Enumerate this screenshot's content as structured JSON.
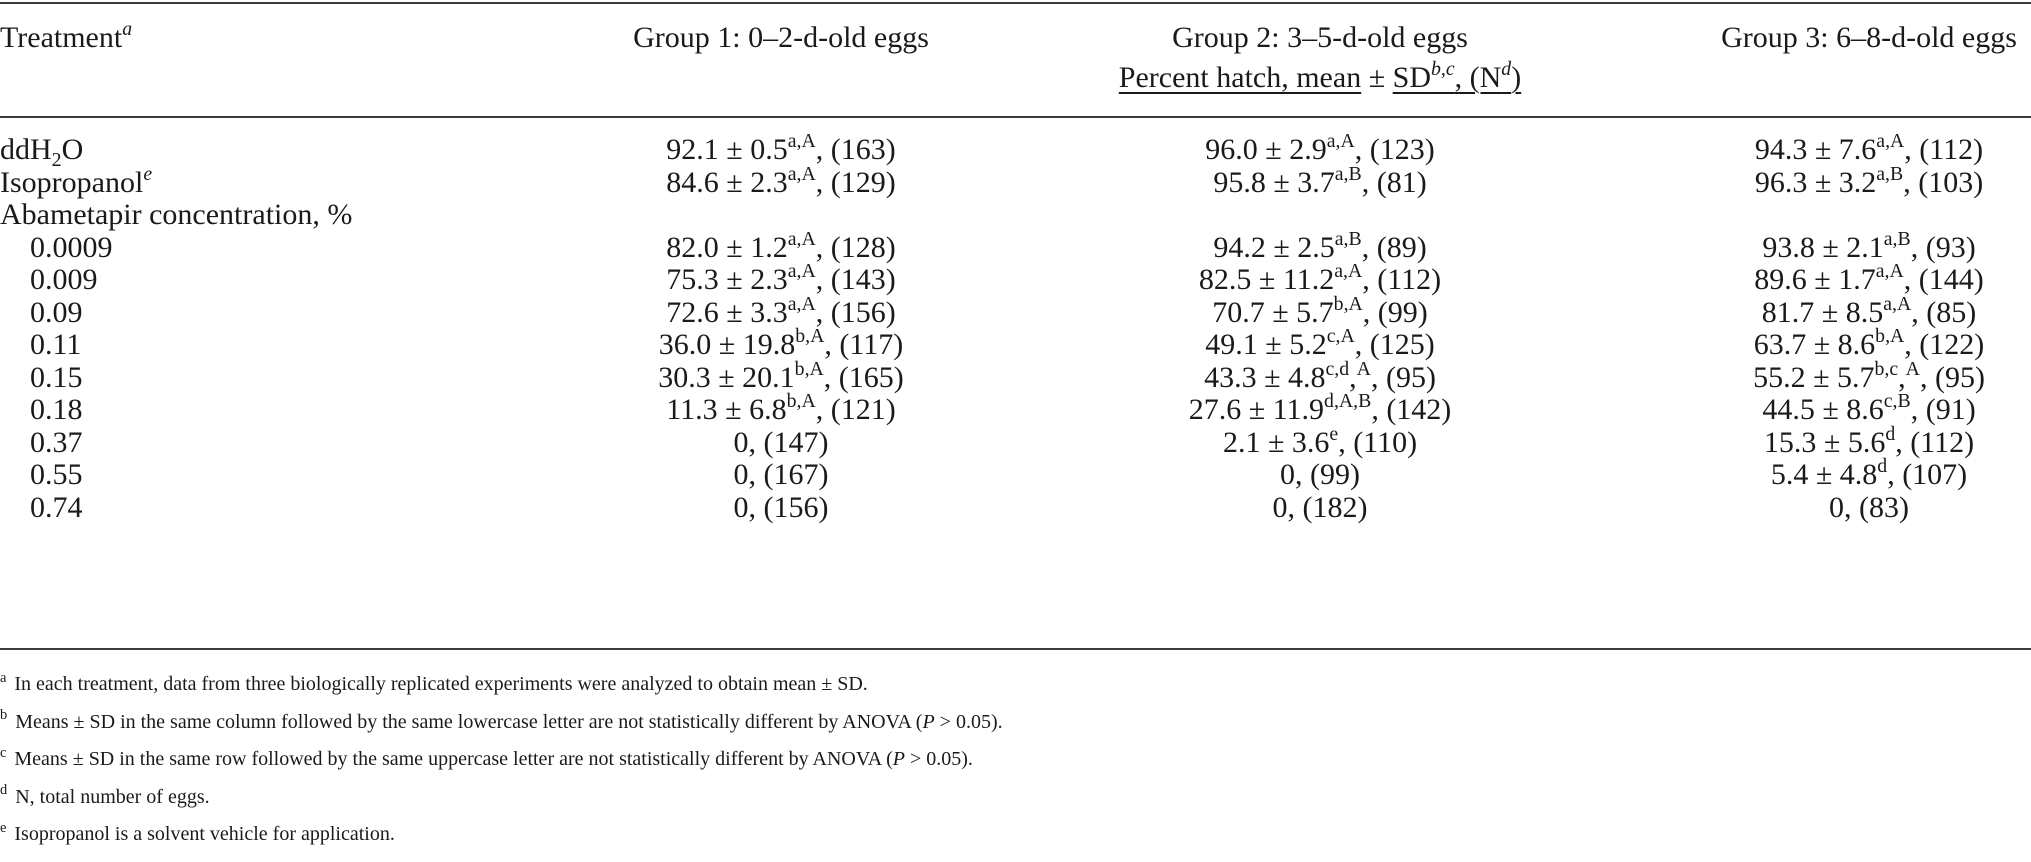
{
  "header": {
    "col_treatment": "Treatment",
    "col_treatment_sup": "a",
    "group1": "Group 1: 0–2-d-old eggs",
    "group2": "Group 2: 3–5-d-old eggs",
    "group3": "Group 3: 6–8-d-old eggs",
    "subheader": {
      "part1": "Percent hatch, mean",
      "pm": " ± ",
      "part2": "SD",
      "sup_bc": "b,c",
      "part3": ", (N",
      "sup_d": "d",
      "part4": ")"
    }
  },
  "rows": [
    {
      "label_main": "ddH",
      "label_sub": "2",
      "label_tail": "O",
      "g1": {
        "v": "92.1 ± 0.5",
        "s": "a,A",
        "n": ", (163)"
      },
      "g2": {
        "v": "96.0 ± 2.9",
        "s": "a,A",
        "n": ", (123)"
      },
      "g3": {
        "v": "94.3 ± 7.6",
        "s": "a,A",
        "n": ", (112)"
      }
    },
    {
      "label_main": "Isopropanol",
      "label_sup": "e",
      "g1": {
        "v": "84.6 ± 2.3",
        "s": "a,A",
        "n": ", (129)"
      },
      "g2": {
        "v": "95.8 ± 3.7",
        "s": "a,B",
        "n": ", (81)"
      },
      "g3": {
        "v": "96.3 ± 3.2",
        "s": "a,B",
        "n": ", (103)"
      }
    },
    {
      "label_main": "Abametapir concentration, %"
    },
    {
      "label_main": "0.0009",
      "indent": true,
      "g1": {
        "v": "82.0 ± 1.2",
        "s": "a,A",
        "n": ", (128)"
      },
      "g2": {
        "v": "94.2 ± 2.5",
        "s": "a,B",
        "n": ", (89)"
      },
      "g3": {
        "v": "93.8 ± 2.1",
        "s": "a,B",
        "n": ", (93)"
      }
    },
    {
      "label_main": "0.009",
      "indent": true,
      "g1": {
        "v": "75.3 ± 2.3",
        "s": "a,A",
        "n": ", (143)"
      },
      "g2": {
        "v": "82.5 ± 11.2",
        "s": "a,A",
        "n": ", (112)"
      },
      "g3": {
        "v": "89.6 ± 1.7",
        "s": "a,A",
        "n": ", (144)"
      }
    },
    {
      "label_main": "0.09",
      "indent": true,
      "g1": {
        "v": "72.6 ± 3.3",
        "s": "a,A",
        "n": ", (156)"
      },
      "g2": {
        "v": "70.7 ± 5.7",
        "s": "b,A",
        "n": ", (99)"
      },
      "g3": {
        "v": "81.7 ± 8.5",
        "s": "a,A",
        "n": ", (85)"
      }
    },
    {
      "label_main": "0.11",
      "indent": true,
      "g1": {
        "v": "36.0 ± 19.8",
        "s": "b,A",
        "n": ", (117)"
      },
      "g2": {
        "v": "49.1 ± 5.2",
        "s": "c,A",
        "n": ", (125)"
      },
      "g3": {
        "v": "63.7 ± 8.6",
        "s": "b,A",
        "n": ", (122)"
      }
    },
    {
      "label_main": "0.15",
      "indent": true,
      "g1": {
        "v": "30.3 ± 20.1",
        "s": "b,A",
        "n": ", (165)"
      },
      "g2": {
        "v": "43.3 ± 4.8",
        "s": "c,d",
        "s2": ",",
        "s3": "A",
        "n": ", (95)"
      },
      "g3": {
        "v": "55.2 ± 5.7",
        "s": "b,c",
        "s2": ",",
        "s3": "A",
        "n": ", (95)"
      }
    },
    {
      "label_main": "0.18",
      "indent": true,
      "g1": {
        "v": "11.3 ± 6.8",
        "s": "b,A",
        "n": ", (121)"
      },
      "g2": {
        "v": "27.6 ± 11.9",
        "s": "d,A,B",
        "n": ", (142)"
      },
      "g3": {
        "v": "44.5 ± 8.6",
        "s": "c,B",
        "n": ", (91)"
      }
    },
    {
      "label_main": "0.37",
      "indent": true,
      "g1": {
        "v": "0, (147)"
      },
      "g2": {
        "v": "2.1 ± 3.6",
        "s": "e",
        "n": ", (110)"
      },
      "g3": {
        "v": "15.3 ± 5.6",
        "s": "d",
        "n": ", (112)"
      }
    },
    {
      "label_main": "0.55",
      "indent": true,
      "g1": {
        "v": "0, (167)"
      },
      "g2": {
        "v": "0, (99)"
      },
      "g3": {
        "v": "5.4 ± 4.8",
        "s": "d",
        "n": ", (107)"
      }
    },
    {
      "label_main": "0.74",
      "indent": true,
      "g1": {
        "v": "0, (156)"
      },
      "g2": {
        "v": "0, (182)"
      },
      "g3": {
        "v": "0, (83)"
      }
    }
  ],
  "footnotes": [
    {
      "mark": "a",
      "pre": "In each treatment, data from three biologically replicated experiments were analyzed to obtain mean ± SD."
    },
    {
      "mark": "b",
      "pre": "Means ± SD in the same column followed by the same lowercase letter are not statistically different by ANOVA (",
      "italic": "P",
      "post": " > 0.05)."
    },
    {
      "mark": "c",
      "pre": "Means ± SD in the same row followed by the same uppercase letter are not statistically different by ANOVA (",
      "italic": "P",
      "post": " > 0.05)."
    },
    {
      "mark": "d",
      "pre": "N, total number of eggs."
    },
    {
      "mark": "e",
      "pre": "Isopropanol is a solvent vehicle for application."
    }
  ]
}
